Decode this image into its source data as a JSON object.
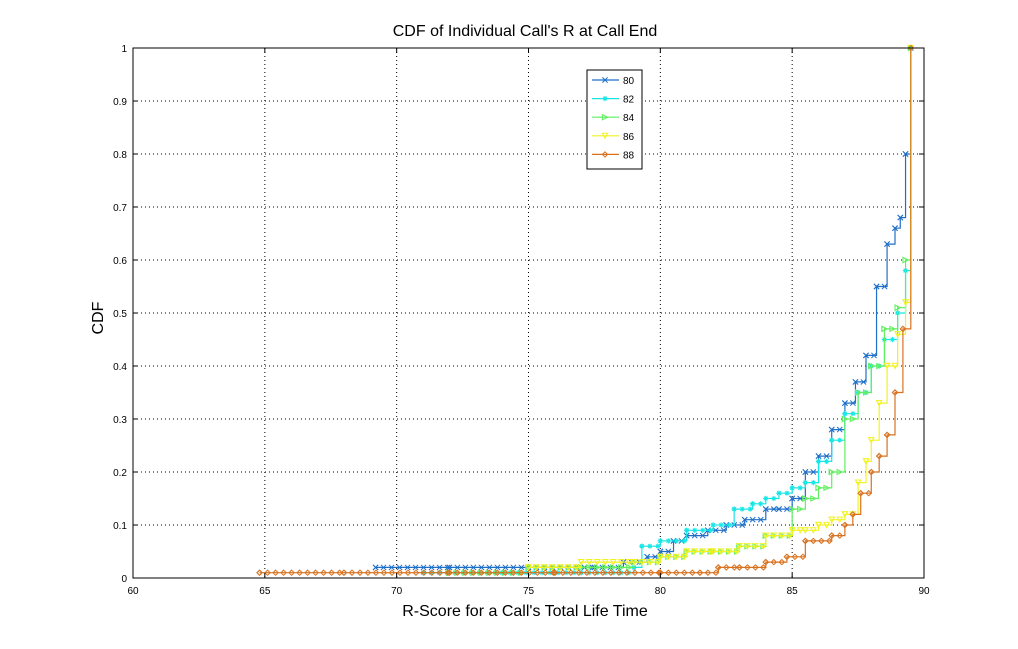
{
  "chart_data": {
    "type": "line",
    "title": "CDF of Individual Call's R at Call End",
    "xlabel": "R-Score for a Call's Total Life Time",
    "ylabel": "CDF",
    "xlim": [
      60,
      90
    ],
    "ylim": [
      0,
      1
    ],
    "xticks": [
      "60",
      "65",
      "70",
      "75",
      "80",
      "85",
      "90"
    ],
    "yticks": [
      "0",
      "0.1",
      "0.2",
      "0.3",
      "0.4",
      "0.5",
      "0.6",
      "0.7",
      "0.8",
      "0.9",
      "1"
    ],
    "grid": true,
    "legend_position": "top-center",
    "series": [
      {
        "name": "80",
        "color": "#1f6fc8",
        "marker": "x",
        "x": [
          69.2,
          72,
          75,
          77.5,
          78.6,
          79.5,
          80,
          80.5,
          81,
          81.8,
          82.5,
          83.2,
          84,
          84.5,
          85,
          85.5,
          86,
          86.5,
          87,
          87.4,
          87.8,
          88.2,
          88.6,
          88.9,
          89.1,
          89.3,
          89.5
        ],
        "y": [
          0.02,
          0.02,
          0.02,
          0.02,
          0.03,
          0.04,
          0.05,
          0.07,
          0.08,
          0.09,
          0.1,
          0.11,
          0.13,
          0.13,
          0.15,
          0.2,
          0.23,
          0.28,
          0.33,
          0.37,
          0.42,
          0.55,
          0.63,
          0.66,
          0.68,
          0.8,
          1.0
        ]
      },
      {
        "name": "82",
        "color": "#16e6e6",
        "marker": "*",
        "x": [
          71,
          74,
          77,
          78.5,
          79,
          79.3,
          80,
          81,
          82,
          82.8,
          83.5,
          84,
          84.5,
          85,
          85.5,
          86,
          86.5,
          87,
          87.5,
          88,
          88.5,
          89,
          89.3,
          89.5
        ],
        "y": [
          0.01,
          0.01,
          0.01,
          0.01,
          0.02,
          0.06,
          0.07,
          0.09,
          0.1,
          0.13,
          0.14,
          0.15,
          0.16,
          0.17,
          0.18,
          0.22,
          0.26,
          0.31,
          0.35,
          0.4,
          0.45,
          0.5,
          0.58,
          1.0
        ]
      },
      {
        "name": "84",
        "color": "#5fef5f",
        "marker": ">",
        "x": [
          72,
          75,
          77,
          79,
          80,
          81,
          82,
          83,
          84,
          85,
          85.5,
          86,
          86.5,
          87,
          87.5,
          88,
          88.5,
          89,
          89.3,
          89.5
        ],
        "y": [
          0.01,
          0.02,
          0.02,
          0.03,
          0.04,
          0.05,
          0.05,
          0.06,
          0.08,
          0.13,
          0.15,
          0.17,
          0.2,
          0.3,
          0.35,
          0.4,
          0.47,
          0.51,
          0.6,
          1.0
        ]
      },
      {
        "name": "86",
        "color": "#f2f222",
        "marker": "v",
        "x": [
          75,
          77,
          79,
          80,
          81,
          82,
          83,
          84,
          85,
          85.5,
          86,
          86.5,
          87,
          87.5,
          87.8,
          88,
          88.3,
          88.6,
          89,
          89.3,
          89.5
        ],
        "y": [
          0.02,
          0.03,
          0.03,
          0.04,
          0.05,
          0.05,
          0.06,
          0.08,
          0.09,
          0.09,
          0.1,
          0.11,
          0.12,
          0.18,
          0.22,
          0.26,
          0.33,
          0.4,
          0.46,
          0.52,
          1.0
        ]
      },
      {
        "name": "88",
        "color": "#d9721f",
        "marker": "diamond",
        "x": [
          64.8,
          68,
          72,
          76,
          80,
          81.5,
          82.2,
          83,
          84,
          84.8,
          85.5,
          86.5,
          87,
          87.3,
          87.6,
          88,
          88.3,
          88.6,
          88.9,
          89.2,
          89.5
        ],
        "y": [
          0.01,
          0.01,
          0.01,
          0.01,
          0.01,
          0.01,
          0.02,
          0.02,
          0.03,
          0.04,
          0.07,
          0.08,
          0.1,
          0.12,
          0.16,
          0.2,
          0.23,
          0.27,
          0.35,
          0.47,
          1.0
        ]
      }
    ]
  }
}
